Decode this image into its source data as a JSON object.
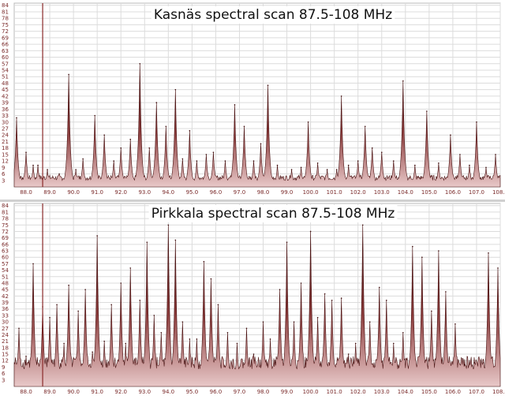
{
  "chart_data": [
    {
      "type": "area",
      "title": "Kasnäs spectral scan 87.5-108 MHz",
      "x_ticks": [
        "88.0",
        "89.0",
        "90.0",
        "91.0",
        "92.0",
        "93.0",
        "94.0",
        "95.0",
        "96.0",
        "97.0",
        "98.0",
        "99.0",
        "100.0",
        "101.0",
        "102.0",
        "103.0",
        "104.0",
        "105.0",
        "106.0",
        "107.0",
        "108.0"
      ],
      "y_ticks": [
        84,
        81,
        78,
        75,
        72,
        69,
        66,
        63,
        60,
        57,
        54,
        51,
        48,
        45,
        42,
        39,
        36,
        33,
        30,
        27,
        24,
        21,
        18,
        15,
        12,
        9,
        6,
        3
      ],
      "xlim": [
        87.5,
        108.0
      ],
      "ylim": [
        0,
        85
      ],
      "grid": true,
      "color": "#6b1d1d",
      "marker_x": 88.7,
      "peaks": [
        [
          87.6,
          32
        ],
        [
          88.0,
          16
        ],
        [
          88.3,
          10
        ],
        [
          88.5,
          10
        ],
        [
          88.9,
          8
        ],
        [
          89.4,
          6
        ],
        [
          89.8,
          52
        ],
        [
          90.1,
          8
        ],
        [
          90.4,
          13
        ],
        [
          90.9,
          33
        ],
        [
          91.3,
          24
        ],
        [
          91.7,
          12
        ],
        [
          92.0,
          18
        ],
        [
          92.4,
          22
        ],
        [
          92.8,
          57
        ],
        [
          93.2,
          18
        ],
        [
          93.5,
          39
        ],
        [
          93.9,
          28
        ],
        [
          94.3,
          45
        ],
        [
          94.6,
          13
        ],
        [
          94.9,
          26
        ],
        [
          95.2,
          12
        ],
        [
          95.6,
          15
        ],
        [
          95.9,
          16
        ],
        [
          96.4,
          12
        ],
        [
          96.8,
          38
        ],
        [
          97.2,
          28
        ],
        [
          97.6,
          12
        ],
        [
          97.9,
          20
        ],
        [
          98.2,
          47
        ],
        [
          98.6,
          10
        ],
        [
          99.2,
          8
        ],
        [
          99.6,
          9
        ],
        [
          99.9,
          30
        ],
        [
          100.3,
          11
        ],
        [
          100.7,
          8
        ],
        [
          101.1,
          8
        ],
        [
          101.3,
          42
        ],
        [
          101.6,
          10
        ],
        [
          102.0,
          12
        ],
        [
          102.3,
          28
        ],
        [
          102.6,
          18
        ],
        [
          103.0,
          16
        ],
        [
          103.5,
          12
        ],
        [
          103.9,
          49
        ],
        [
          104.4,
          10
        ],
        [
          104.9,
          35
        ],
        [
          105.4,
          11
        ],
        [
          105.9,
          24
        ],
        [
          106.3,
          15
        ],
        [
          106.7,
          10
        ],
        [
          107.0,
          30
        ],
        [
          107.4,
          9
        ],
        [
          107.8,
          15
        ]
      ]
    },
    {
      "type": "area",
      "title": "Pirkkala spectral scan 87.5-108 MHz",
      "x_ticks": [
        "88.0",
        "89.0",
        "90.0",
        "91.0",
        "92.0",
        "93.0",
        "94.0",
        "95.0",
        "96.0",
        "97.0",
        "98.0",
        "99.0",
        "100.0",
        "101.0",
        "102.0",
        "103.0",
        "104.0",
        "105.0",
        "106.0",
        "107.0",
        "108.0"
      ],
      "y_ticks": [
        84,
        81,
        78,
        75,
        72,
        69,
        66,
        63,
        60,
        57,
        54,
        51,
        48,
        45,
        42,
        39,
        36,
        33,
        30,
        27,
        24,
        21,
        18,
        15,
        12,
        9,
        6,
        3
      ],
      "xlim": [
        87.5,
        108.0
      ],
      "ylim": [
        0,
        85
      ],
      "grid": true,
      "color": "#6b1d1d",
      "marker_x": 88.7,
      "peaks": [
        [
          87.7,
          27
        ],
        [
          88.0,
          14
        ],
        [
          88.3,
          57
        ],
        [
          88.7,
          37
        ],
        [
          89.0,
          32
        ],
        [
          89.3,
          38
        ],
        [
          89.6,
          20
        ],
        [
          89.8,
          47
        ],
        [
          90.2,
          35
        ],
        [
          90.5,
          45
        ],
        [
          90.8,
          16
        ],
        [
          91.0,
          70
        ],
        [
          91.3,
          21
        ],
        [
          91.6,
          38
        ],
        [
          92.0,
          48
        ],
        [
          92.2,
          20
        ],
        [
          92.4,
          55
        ],
        [
          92.8,
          40
        ],
        [
          93.1,
          67
        ],
        [
          93.4,
          33
        ],
        [
          93.7,
          25
        ],
        [
          94.0,
          75
        ],
        [
          94.3,
          68
        ],
        [
          94.6,
          30
        ],
        [
          94.9,
          22
        ],
        [
          95.2,
          22
        ],
        [
          95.5,
          58
        ],
        [
          95.8,
          50
        ],
        [
          96.1,
          38
        ],
        [
          96.5,
          25
        ],
        [
          96.9,
          20
        ],
        [
          97.3,
          27
        ],
        [
          97.6,
          15
        ],
        [
          98.0,
          30
        ],
        [
          98.3,
          22
        ],
        [
          98.7,
          45
        ],
        [
          99.0,
          67
        ],
        [
          99.3,
          30
        ],
        [
          99.6,
          48
        ],
        [
          100.0,
          72
        ],
        [
          100.3,
          32
        ],
        [
          100.6,
          43
        ],
        [
          100.9,
          40
        ],
        [
          101.3,
          41
        ],
        [
          101.6,
          15
        ],
        [
          101.9,
          20
        ],
        [
          102.2,
          75
        ],
        [
          102.5,
          30
        ],
        [
          102.9,
          46
        ],
        [
          103.2,
          40
        ],
        [
          103.5,
          20
        ],
        [
          103.9,
          25
        ],
        [
          104.3,
          65
        ],
        [
          104.7,
          60
        ],
        [
          105.1,
          35
        ],
        [
          105.4,
          63
        ],
        [
          105.7,
          44
        ],
        [
          106.1,
          29
        ],
        [
          106.5,
          10
        ],
        [
          106.9,
          11
        ],
        [
          107.3,
          11
        ],
        [
          107.5,
          62
        ],
        [
          107.9,
          55
        ]
      ]
    }
  ]
}
